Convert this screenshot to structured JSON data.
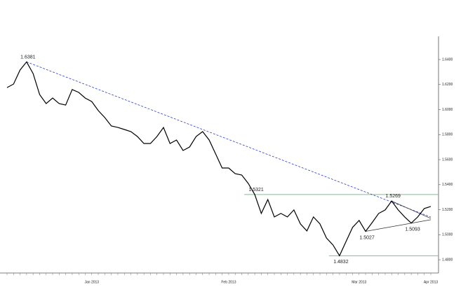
{
  "chart_data": {
    "type": "line",
    "color": "#000000",
    "categories": [
      null,
      null,
      null,
      null,
      null,
      null,
      null,
      null,
      null,
      null,
      null,
      null,
      null,
      "Jan 2013",
      null,
      null,
      null,
      null,
      null,
      null,
      null,
      null,
      null,
      null,
      null,
      null,
      null,
      null,
      null,
      null,
      null,
      null,
      null,
      null,
      "Feb 2013",
      null,
      null,
      null,
      null,
      null,
      null,
      null,
      null,
      null,
      null,
      null,
      null,
      null,
      null,
      null,
      null,
      null,
      null,
      null,
      "Mar 2013",
      null,
      null,
      null,
      null,
      null,
      null,
      null,
      null,
      null,
      null,
      "Apr 2013"
    ],
    "values": [
      1.6176,
      1.6204,
      1.6316,
      1.6381,
      1.6288,
      1.612,
      1.6048,
      1.6092,
      1.6048,
      1.6036,
      1.616,
      1.6137,
      1.6092,
      1.6064,
      1.5992,
      1.5936,
      1.5869,
      1.5857,
      1.5841,
      1.5824,
      1.5785,
      1.5729,
      1.5729,
      1.5785,
      1.5857,
      1.5729,
      1.5757,
      1.5673,
      1.5701,
      1.5785,
      1.5824,
      1.5757,
      1.5645,
      1.5533,
      1.5533,
      1.5488,
      1.5477,
      1.541,
      1.5321,
      1.517,
      1.5281,
      1.5142,
      1.517,
      1.5142,
      1.5198,
      1.5086,
      1.503,
      1.5142,
      1.5086,
      1.4974,
      1.4918,
      1.4832,
      1.4946,
      1.5058,
      1.5114,
      1.5027,
      1.5097,
      1.517,
      1.5198,
      1.5269,
      1.5198,
      1.5142,
      1.5093,
      1.5142,
      1.5209,
      1.5226
    ],
    "ylim": [
      1.475,
      1.654
    ],
    "yticks": [
      {
        "value": 1.48,
        "label": "1.4800"
      },
      {
        "value": 1.5,
        "label": "1.5000"
      },
      {
        "value": 1.52,
        "label": "1.5200"
      },
      {
        "value": 1.54,
        "label": "1.5400"
      },
      {
        "value": 1.56,
        "label": "1.5600"
      },
      {
        "value": 1.58,
        "label": "1.5800"
      },
      {
        "value": 1.6,
        "label": "1.6000"
      },
      {
        "value": 1.62,
        "label": "1.6200"
      },
      {
        "value": 1.64,
        "label": "1.6400"
      }
    ],
    "annotations": [
      {
        "value": 1.6381,
        "index": 3,
        "position": "above",
        "hline": false
      },
      {
        "value": 1.5321,
        "index": 38,
        "position": "above",
        "hline": true
      },
      {
        "value": 1.5269,
        "index": 59,
        "position": "above",
        "hline": false
      },
      {
        "value": 1.5027,
        "index": 55,
        "position": "below",
        "hline": false
      },
      {
        "value": 1.5093,
        "index": 62,
        "position": "below",
        "hline": false
      },
      {
        "value": 1.4832,
        "index": 51,
        "position": "below",
        "hline": true
      }
    ],
    "hline_color": "#7fbf8f",
    "trendlines": [
      {
        "from": [
          3,
          1.6381
        ],
        "to": [
          65,
          1.5141
        ],
        "color": "#2a3fc7",
        "dash": true
      },
      {
        "from": [
          55,
          1.5027
        ],
        "to": [
          65,
          1.512
        ],
        "color": "#333333",
        "dash": false
      },
      {
        "from": [
          59,
          1.5269
        ],
        "to": [
          65,
          1.513
        ],
        "color": "#333333",
        "dash": false
      }
    ]
  }
}
